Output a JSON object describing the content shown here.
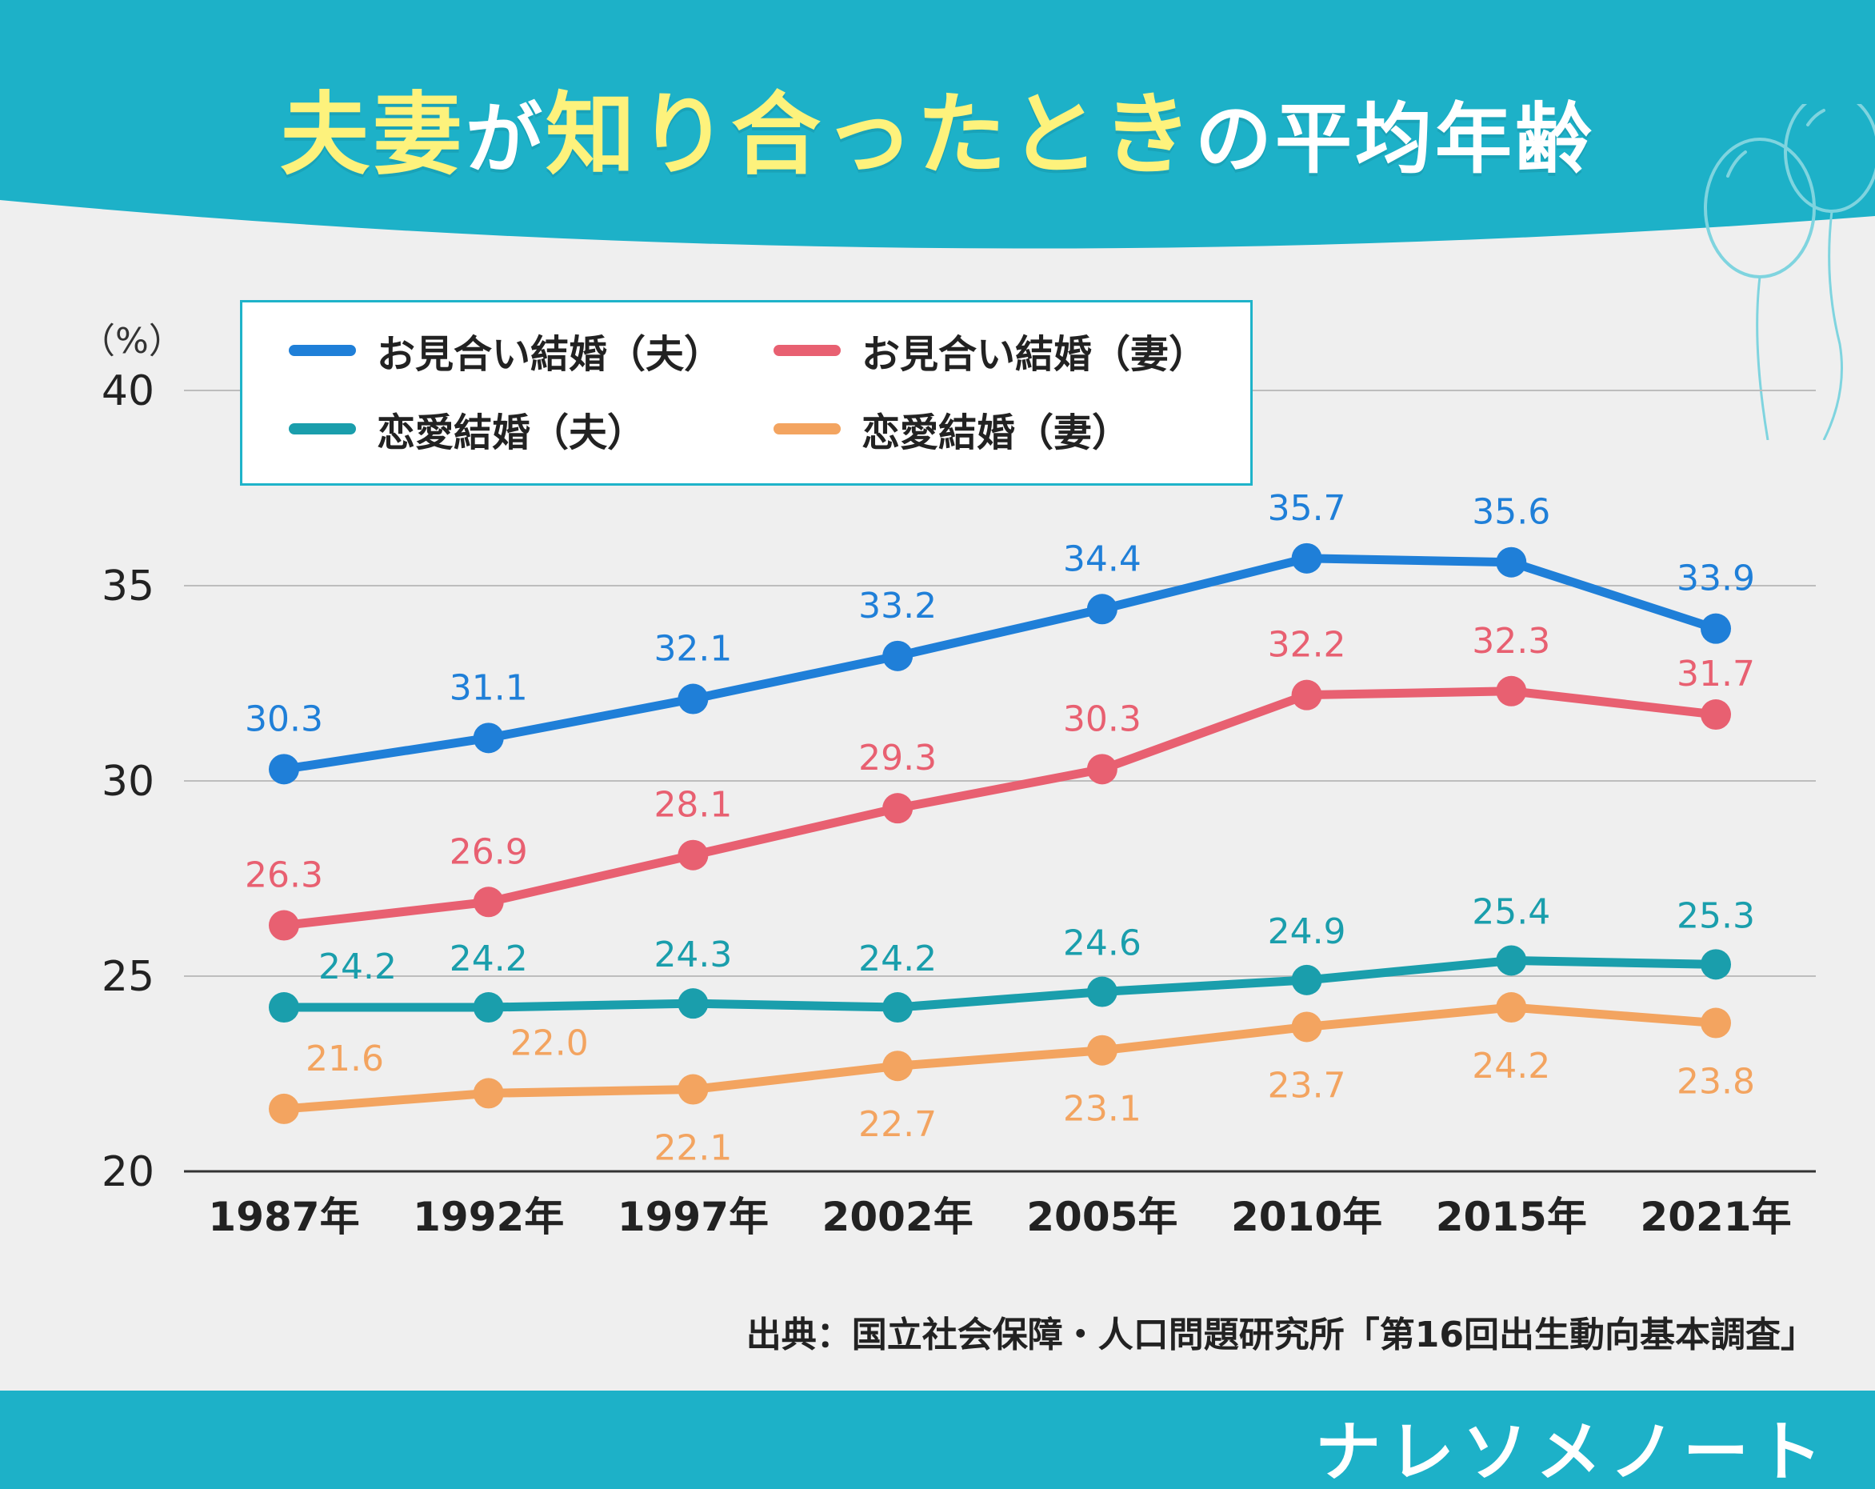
{
  "title": {
    "part1": "夫妻",
    "part2": "が",
    "part3": "知り合ったとき",
    "part4": "の",
    "part5": "平均年齢"
  },
  "colors": {
    "header": "#1db1c8",
    "footer": "#1db1c8",
    "title": "#fdf27c",
    "background": "#efefef"
  },
  "chart_data": {
    "type": "line",
    "title": "夫妻が知り合ったときの平均年齢",
    "ylabel": "（%）",
    "xlabel": "",
    "ylim": [
      20,
      40
    ],
    "yticks": [
      20,
      25,
      30,
      35,
      40
    ],
    "grid": true,
    "legend_position": "top-left",
    "categories": [
      "1987年",
      "1992年",
      "1997年",
      "2002年",
      "2005年",
      "2010年",
      "2015年",
      "2021年"
    ],
    "series": [
      {
        "name": "お見合い結婚（夫）",
        "color": "#1f7fd8",
        "values": [
          30.3,
          31.1,
          32.1,
          33.2,
          34.4,
          35.7,
          35.6,
          33.9
        ],
        "labels": [
          "30.3",
          "31.1",
          "32.1",
          "33.2",
          "34.4",
          "35.7",
          "35.6",
          "33.9"
        ]
      },
      {
        "name": "お見合い結婚（妻）",
        "color": "#e86071",
        "values": [
          26.3,
          26.9,
          28.1,
          29.3,
          30.3,
          32.2,
          32.3,
          31.7
        ],
        "labels": [
          "26.3",
          "26.9",
          "28.1",
          "29.3",
          "30.3",
          "32.2",
          "32.3",
          "31.7"
        ]
      },
      {
        "name": "恋愛結婚（夫）",
        "color": "#1a9eac",
        "values": [
          24.2,
          24.2,
          24.3,
          24.2,
          24.6,
          24.9,
          25.4,
          25.3
        ],
        "labels": [
          "24.2",
          "24.2",
          "24.3",
          "24.2",
          "24.6",
          "24.9",
          "25.4",
          "25.3"
        ]
      },
      {
        "name": "恋愛結婚（妻）",
        "color": "#f3a460",
        "values": [
          21.6,
          22.0,
          22.1,
          22.7,
          23.1,
          23.7,
          24.2,
          23.8
        ],
        "labels": [
          "21.6",
          "22.0",
          "22.1",
          "22.7",
          "23.1",
          "23.7",
          "24.2",
          "23.8"
        ]
      }
    ]
  },
  "source": "出典：国立社会保障・人口問題研究所「第16回出生動向基本調査」",
  "brand": "ナレソメノート"
}
